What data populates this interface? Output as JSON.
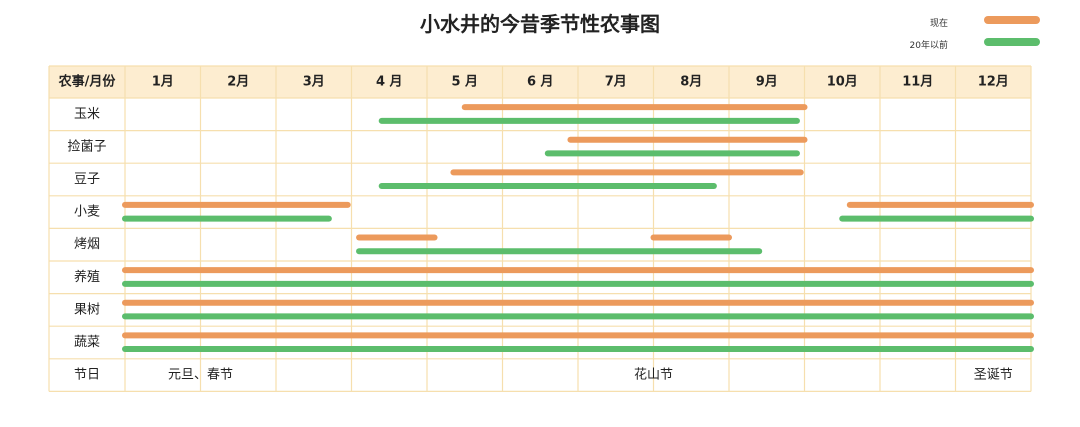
{
  "title": "小水井的今昔季节性农事图",
  "legend": [
    {
      "label": "现在",
      "color": "#ec9a5c"
    },
    {
      "label": "20年以前",
      "color": "#5cbd6c"
    }
  ],
  "colors": {
    "header_bg": "#fdedd0",
    "grid": "#f6dfae",
    "now": "#ec9a5c",
    "past": "#5cbd6c"
  },
  "chart_data": {
    "type": "gantt",
    "corner_label": "农事/月份",
    "months": [
      "1月",
      "2月",
      "3月",
      "4 月",
      "5 月",
      "6 月",
      "7月",
      "8月",
      "9月",
      "10月",
      "11月",
      "12月"
    ],
    "series": [
      {
        "name": "现在"
      },
      {
        "name": "20年以前"
      }
    ],
    "rows": [
      {
        "label": "玉米",
        "now": [
          [
            5.5,
            10.0
          ]
        ],
        "past": [
          [
            4.4,
            9.9
          ]
        ]
      },
      {
        "label": "捡菌子",
        "now": [
          [
            6.9,
            10.0
          ]
        ],
        "past": [
          [
            6.6,
            9.9
          ]
        ]
      },
      {
        "label": "豆子",
        "now": [
          [
            5.35,
            9.95
          ]
        ],
        "past": [
          [
            4.4,
            8.8
          ]
        ]
      },
      {
        "label": "小麦",
        "now": [
          [
            1.0,
            3.95
          ],
          [
            10.6,
            13.0
          ]
        ],
        "past": [
          [
            1.0,
            3.7
          ],
          [
            10.5,
            13.0
          ]
        ]
      },
      {
        "label": "烤烟",
        "now": [
          [
            4.1,
            5.1
          ],
          [
            8.0,
            9.0
          ]
        ],
        "past": [
          [
            4.1,
            9.4
          ]
        ]
      },
      {
        "label": "养殖",
        "now": [
          [
            1.0,
            13.0
          ]
        ],
        "past": [
          [
            1.0,
            13.0
          ]
        ]
      },
      {
        "label": "果树",
        "now": [
          [
            1.0,
            13.0
          ]
        ],
        "past": [
          [
            1.0,
            13.0
          ]
        ]
      },
      {
        "label": "蔬菜",
        "now": [
          [
            1.0,
            13.0
          ]
        ],
        "past": [
          [
            1.0,
            13.0
          ]
        ]
      }
    ],
    "festival_row": {
      "label": "节日",
      "items": [
        {
          "text": "元旦、春节",
          "month": 2.0
        },
        {
          "text": "花山节",
          "month": 8.0
        },
        {
          "text": "圣诞节",
          "month": 12.5
        }
      ]
    }
  }
}
